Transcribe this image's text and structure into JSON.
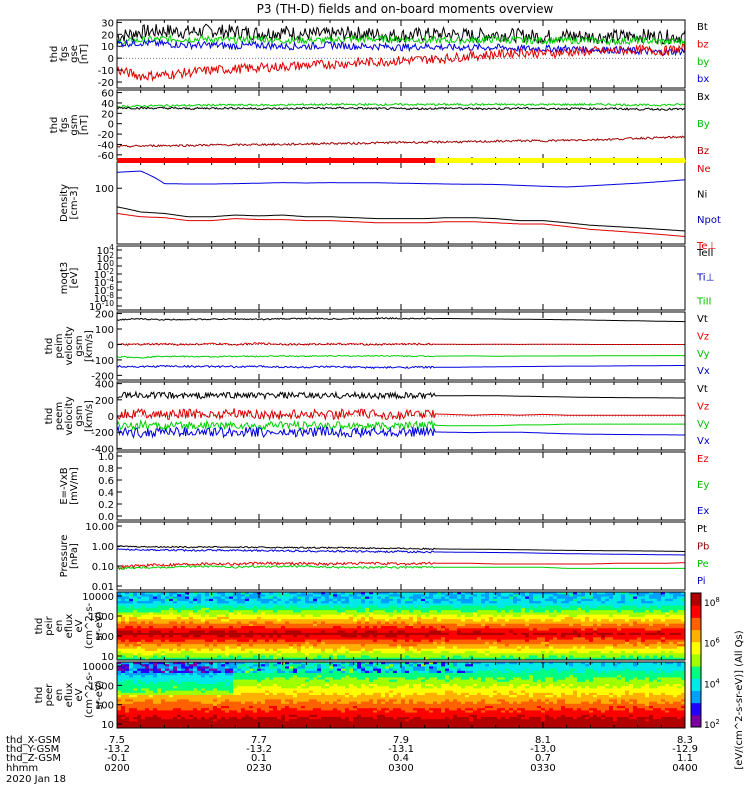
{
  "title": "P3 (TH-D) fields and on-board moments overview",
  "footer": {
    "date": "2020 Jan 18",
    "row_labels": [
      "thd_X-GSM",
      "thd_Y-GSM",
      "thd_Z-GSM",
      "hhmm"
    ],
    "x_gsm": [
      "7.5",
      "7.7",
      "7.9",
      "8.1",
      "8.3"
    ],
    "y_gsm": [
      "-13.2",
      "-13.2",
      "-13.1",
      "-13.0",
      "-12.9"
    ],
    "z_gsm": [
      "-0.1",
      "0.1",
      "0.4",
      "0.7",
      "1.1"
    ],
    "hhmm": [
      "0200",
      "0230",
      "0300",
      "0330",
      "0400"
    ]
  },
  "colorbar": {
    "label": "[eV/(cm^2-s-sr-eV)] (All Qs)",
    "tick_labels": [
      "10^8",
      "10^6",
      "10^4",
      "10^2"
    ],
    "colors": [
      "#7a00a0",
      "#2000ff",
      "#00a0ff",
      "#00e8e8",
      "#00ff80",
      "#a0ff00",
      "#ffff00",
      "#ffb000",
      "#ff6000",
      "#ff0000",
      "#b00000"
    ]
  },
  "chart_data": [
    {
      "type": "line",
      "id": "fgs",
      "ylabel": [
        "thd",
        "fgs",
        "gse",
        "[nT]"
      ],
      "yticks": [
        "30",
        "20",
        "10",
        "0",
        "-10",
        "-20"
      ],
      "ylim": [
        -25,
        32
      ],
      "legend": [
        {
          "name": "Bt",
          "color": "#000000"
        },
        {
          "name": "bz",
          "color": "#e00000"
        },
        {
          "name": "by",
          "color": "#00c000"
        },
        {
          "name": "bx",
          "color": "#0000e0"
        }
      ],
      "series": [
        {
          "name": "Bt",
          "color": "#000000",
          "values": [
            18,
            22,
            23,
            22,
            23,
            22,
            21,
            22,
            20,
            20,
            21,
            20,
            19,
            20,
            20,
            19,
            20,
            19,
            18,
            19,
            18,
            18,
            19,
            18,
            18
          ]
        },
        {
          "name": "by",
          "color": "#00d000",
          "values": [
            13,
            15,
            16,
            16,
            16,
            15,
            16,
            15,
            15,
            15,
            16,
            16,
            16,
            15,
            15,
            15,
            16,
            15,
            15,
            15,
            15,
            14,
            15,
            14,
            14
          ]
        },
        {
          "name": "bx",
          "color": "#0000e0",
          "values": [
            12,
            13,
            12,
            11,
            11,
            10,
            11,
            10,
            10,
            11,
            10,
            10,
            9,
            10,
            9,
            9,
            9,
            8,
            8,
            8,
            7,
            7,
            6,
            5,
            6
          ]
        },
        {
          "name": "bz",
          "color": "#e00000",
          "values": [
            -10,
            -15,
            -14,
            -12,
            -10,
            -9,
            -8,
            -7,
            -6,
            -5,
            -4,
            -3,
            -2,
            -1,
            0,
            2,
            3,
            5,
            4,
            5,
            6,
            6,
            7,
            6,
            8
          ]
        }
      ]
    },
    {
      "type": "line",
      "id": "fgs_gsm",
      "ylabel": [
        "thd",
        "fgs",
        "gsm",
        "[nT]"
      ],
      "yticks": [
        "60",
        "40",
        "20",
        "0",
        "-20",
        "-40",
        "-60"
      ],
      "ylim": [
        -70,
        65
      ],
      "legend": [
        {
          "name": "Bx",
          "color": "#000000"
        },
        {
          "name": "By",
          "color": "#00c000"
        },
        {
          "name": "Bz",
          "color": "#a00000"
        }
      ],
      "series": [
        {
          "name": "By",
          "color": "#00d000",
          "values": [
            33,
            34,
            35,
            35,
            36,
            36,
            36,
            36,
            37,
            37,
            37,
            37,
            37,
            37,
            37,
            37,
            37,
            37,
            37,
            37,
            37,
            37,
            36,
            36,
            37
          ]
        },
        {
          "name": "Bx",
          "color": "#000000",
          "values": [
            31,
            30,
            30,
            29,
            30,
            30,
            29,
            29,
            30,
            30,
            30,
            29,
            29,
            29,
            30,
            29,
            29,
            30,
            29,
            29,
            29,
            29,
            28,
            28,
            28
          ]
        },
        {
          "name": "Bz",
          "color": "#a00000",
          "values": [
            -44,
            -43,
            -42,
            -42,
            -41,
            -41,
            -40,
            -40,
            -39,
            -38,
            -38,
            -37,
            -36,
            -36,
            -35,
            -35,
            -34,
            -33,
            -33,
            -32,
            -31,
            -30,
            -28,
            -27,
            -25
          ]
        }
      ]
    },
    {
      "type": "line",
      "id": "density",
      "ylabel": [
        "Density",
        "[cm-3]"
      ],
      "yticks": [
        "100"
      ],
      "legend": [
        {
          "name": "Ne",
          "color": "#e00000"
        },
        {
          "name": "Ni",
          "color": "#000000"
        },
        {
          "name": "Npot",
          "color": "#0000c0"
        },
        {
          "name": "Te⊥",
          "color": "#e00000"
        }
      ],
      "series": [
        {
          "name": "Npot",
          "color": "#0000e0",
          "values": [
            180,
            190,
            110,
            108,
            108,
            110,
            112,
            115,
            113,
            115,
            114,
            114,
            112,
            110,
            108,
            107,
            106,
            102,
            98,
            95,
            100,
            106,
            112,
            120,
            130
          ]
        },
        {
          "name": "Ni",
          "color": "#000000",
          "values": [
            40,
            32,
            30,
            26,
            26,
            28,
            27,
            28,
            26,
            26,
            25,
            24,
            24,
            24,
            25,
            25,
            24,
            22,
            22,
            20,
            18,
            17,
            16,
            15,
            14
          ]
        },
        {
          "name": "Ne",
          "color": "#e00000",
          "values": [
            30,
            26,
            25,
            22,
            22,
            24,
            23,
            23,
            22,
            22,
            21,
            20,
            20,
            20,
            21,
            21,
            20,
            19,
            19,
            17,
            15,
            14,
            13,
            12,
            11
          ]
        }
      ]
    },
    {
      "type": "line",
      "id": "moqt3",
      "ylabel": [
        "moqt3",
        "[eV]"
      ],
      "yticks": [
        "10^4",
        "10^2",
        "10^0",
        "10^-2",
        "10^-4",
        "10^-6",
        "10^-8",
        "10^-10"
      ],
      "legend": [
        {
          "name": "TeII",
          "color": "#000000"
        },
        {
          "name": "Ti⊥",
          "color": "#0000c0"
        },
        {
          "name": "TiII",
          "color": "#00c000"
        }
      ]
    },
    {
      "type": "line",
      "id": "peim",
      "ylabel": [
        "thd",
        "peim",
        "velocity",
        "gsm",
        "[km/s]"
      ],
      "yticks": [
        "200",
        "100",
        "0",
        "-100",
        "-200"
      ],
      "ylim": [
        -230,
        210
      ],
      "legend": [
        {
          "name": "Vt",
          "color": "#000000"
        },
        {
          "name": "Vz",
          "color": "#e00000"
        },
        {
          "name": "Vy",
          "color": "#00c000"
        },
        {
          "name": "Vx",
          "color": "#0000c0"
        }
      ],
      "series": [
        {
          "name": "Vt",
          "color": "#000000",
          "values": [
            160,
            165,
            160,
            162,
            163,
            165,
            162,
            166,
            168,
            165,
            167,
            170,
            168,
            167,
            168,
            166,
            165,
            163,
            162,
            160,
            158,
            155,
            153,
            150,
            148
          ]
        },
        {
          "name": "Vz",
          "color": "#e00000",
          "values": [
            -2,
            0,
            2,
            0,
            4,
            0,
            6,
            2,
            0,
            4,
            2,
            0,
            3,
            2,
            1,
            0,
            2,
            0,
            2,
            1,
            0,
            0,
            0,
            0,
            0
          ]
        },
        {
          "name": "Vy",
          "color": "#00d000",
          "values": [
            -80,
            -85,
            -75,
            -78,
            -80,
            -76,
            -78,
            -74,
            -76,
            -74,
            -75,
            -73,
            -75,
            -76,
            -75,
            -74,
            -76,
            -75,
            -75,
            -74,
            -74,
            -73,
            -73,
            -72,
            -72
          ]
        },
        {
          "name": "Vx",
          "color": "#0000e0",
          "values": [
            -140,
            -145,
            -140,
            -142,
            -143,
            -145,
            -142,
            -146,
            -148,
            -145,
            -147,
            -150,
            -148,
            -147,
            -148,
            -146,
            -145,
            -143,
            -142,
            -140,
            -140,
            -139,
            -138,
            -137,
            -136
          ]
        }
      ]
    },
    {
      "type": "line",
      "id": "peem",
      "ylabel": [
        "thd",
        "peem",
        "velocity",
        "gsm",
        "[km/s]"
      ],
      "yticks": [
        "400",
        "200",
        "0",
        "-200",
        "-400"
      ],
      "ylim": [
        -420,
        420
      ],
      "legend": [
        {
          "name": "Vt",
          "color": "#000000"
        },
        {
          "name": "Vz",
          "color": "#e00000"
        },
        {
          "name": "Vy",
          "color": "#00c000"
        },
        {
          "name": "Vx",
          "color": "#0000c0"
        }
      ],
      "series": [
        {
          "name": "Vt",
          "color": "#000000",
          "values": [
            250,
            260,
            255,
            250,
            255,
            258,
            250,
            255,
            252,
            250,
            255,
            250,
            252,
            248,
            250,
            252,
            250,
            245,
            240,
            235,
            230,
            228,
            226,
            224,
            222
          ]
        },
        {
          "name": "Vz",
          "color": "#e00000",
          "values": [
            20,
            40,
            10,
            30,
            20,
            40,
            20,
            10,
            30,
            20,
            30,
            20,
            10,
            30,
            20,
            10,
            20,
            10,
            20,
            10,
            10,
            10,
            10,
            10,
            10
          ]
        },
        {
          "name": "Vy",
          "color": "#00d000",
          "values": [
            -120,
            -110,
            -130,
            -120,
            -110,
            -120,
            -130,
            -110,
            -120,
            -120,
            -110,
            -130,
            -120,
            -110,
            -120,
            -120,
            -120,
            -110,
            -110,
            -100,
            -100,
            -100,
            -100,
            -100,
            -100
          ]
        },
        {
          "name": "Vx",
          "color": "#0000e0",
          "values": [
            -200,
            -210,
            -190,
            -200,
            -205,
            -195,
            -200,
            -210,
            -200,
            -195,
            -200,
            -205,
            -200,
            -195,
            -200,
            -205,
            -200,
            -200,
            -210,
            -220,
            -225,
            -228,
            -230,
            -232,
            -235
          ]
        }
      ]
    },
    {
      "type": "line",
      "id": "efield",
      "ylabel": [
        "E=-VxB",
        "[mV/m]"
      ],
      "yticks": [
        "1.0",
        "0.8",
        "0.6",
        "0.4",
        "0.2",
        "0.0"
      ],
      "ylim": [
        0,
        1
      ],
      "legend": [
        {
          "name": "Ez",
          "color": "#e00000"
        },
        {
          "name": "Ey",
          "color": "#00c000"
        },
        {
          "name": "Ex",
          "color": "#0000c0"
        }
      ]
    },
    {
      "type": "line",
      "id": "pressure",
      "ylabel": [
        "Pressure",
        "[nPa]"
      ],
      "yticks": [
        "10.00",
        "1.00",
        "0.10",
        "0.01"
      ],
      "legend": [
        {
          "name": "Pt",
          "color": "#000000"
        },
        {
          "name": "Pb",
          "color": "#a00000"
        },
        {
          "name": "Pe",
          "color": "#00c000"
        },
        {
          "name": "Pi",
          "color": "#0000c0"
        }
      ],
      "series": [
        {
          "name": "Pt",
          "color": "#000000",
          "values": [
            0.85,
            0.82,
            0.8,
            0.78,
            0.8,
            0.78,
            0.76,
            0.75,
            0.74,
            0.73,
            0.72,
            0.7,
            0.68,
            0.66,
            0.64,
            0.63,
            0.62,
            0.6,
            0.58,
            0.56,
            0.55,
            0.54,
            0.53,
            0.52,
            0.5
          ]
        },
        {
          "name": "Pi",
          "color": "#0000e0",
          "values": [
            0.62,
            0.6,
            0.58,
            0.56,
            0.58,
            0.56,
            0.55,
            0.54,
            0.53,
            0.52,
            0.51,
            0.5,
            0.49,
            0.48,
            0.47,
            0.46,
            0.45,
            0.44,
            0.42,
            0.4,
            0.39,
            0.38,
            0.37,
            0.36,
            0.35
          ]
        },
        {
          "name": "Pb",
          "color": "#e00000",
          "values": [
            0.1,
            0.12,
            0.13,
            0.14,
            0.15,
            0.14,
            0.15,
            0.15,
            0.15,
            0.14,
            0.15,
            0.15,
            0.14,
            0.15,
            0.15,
            0.15,
            0.14,
            0.14,
            0.14,
            0.14,
            0.14,
            0.15,
            0.15,
            0.15,
            0.16
          ]
        },
        {
          "name": "Pe",
          "color": "#00d000",
          "values": [
            0.09,
            0.1,
            0.1,
            0.11,
            0.11,
            0.1,
            0.11,
            0.11,
            0.11,
            0.1,
            0.1,
            0.1,
            0.1,
            0.1,
            0.1,
            0.1,
            0.1,
            0.1,
            0.1,
            0.09,
            0.09,
            0.09,
            0.09,
            0.09,
            0.09
          ]
        }
      ]
    },
    {
      "type": "heatmap",
      "id": "peir",
      "ylabel": [
        "thd",
        "peir",
        "en",
        "eflux",
        "eV",
        "(cm^2-s-",
        "sr-eV)"
      ],
      "yticks": [
        "10000",
        "1000",
        "100",
        "10"
      ]
    },
    {
      "type": "heatmap",
      "id": "peer",
      "ylabel": [
        "thd",
        "peer",
        "en",
        "eflux",
        "eV",
        "(cm^2-s-",
        "sr-eV)"
      ],
      "yticks": [
        "10000",
        "1000",
        "100",
        "10"
      ]
    }
  ]
}
